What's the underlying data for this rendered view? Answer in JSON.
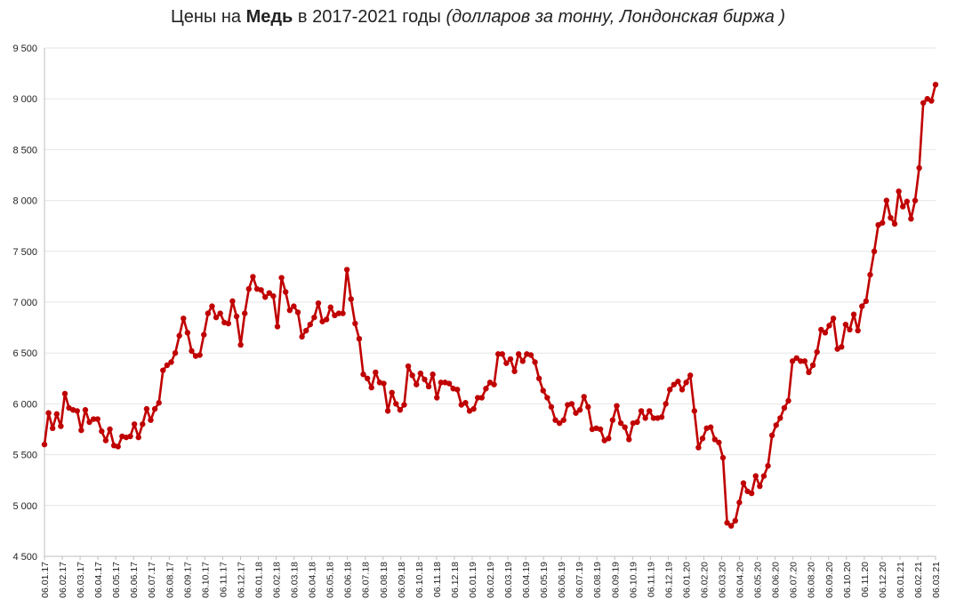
{
  "chart_data": {
    "type": "line",
    "title_parts": {
      "prefix": "Цены на ",
      "bold": "Медь",
      "middle": " в 2017-2021 годы ",
      "italic": "(долларов за тонну, Лондонская биржа )"
    },
    "ylim": [
      4500,
      9500
    ],
    "yticks": [
      4500,
      5000,
      5500,
      6000,
      6500,
      7000,
      7500,
      8000,
      8500,
      9000,
      9500
    ],
    "ytick_labels": [
      "4 500",
      "5 000",
      "5 500",
      "6 000",
      "6 500",
      "7 000",
      "7 500",
      "8 000",
      "8 500",
      "9 000",
      "9 500"
    ],
    "xtick_labels": [
      "06.01.17",
      "06.02.17",
      "06.03.17",
      "06.04.17",
      "06.05.17",
      "06.06.17",
      "06.07.17",
      "06.08.17",
      "06.09.17",
      "06.10.17",
      "06.11.17",
      "06.12.17",
      "06.01.18",
      "06.02.18",
      "06.03.18",
      "06.04.18",
      "06.05.18",
      "06.06.18",
      "06.07.18",
      "06.08.18",
      "06.09.18",
      "06.10.18",
      "06.11.18",
      "06.12.18",
      "06.01.19",
      "06.02.19",
      "06.03.19",
      "06.04.19",
      "06.05.19",
      "06.06.19",
      "06.07.19",
      "06.08.19",
      "06.09.19",
      "06.10.19",
      "06.11.19",
      "06.12.19",
      "06.01.20",
      "06.02.20",
      "06.03.20",
      "06.04.20",
      "06.05.20",
      "06.06.20",
      "06.07.20",
      "06.08.20",
      "06.09.20",
      "06.10.20",
      "06.11.20",
      "06.12.20",
      "06.01.21",
      "06.02.21",
      "06.03.21"
    ],
    "grid": true,
    "legend": "none",
    "series": [
      {
        "color": "#C00000",
        "values": [
          5600,
          5910,
          5760,
          5900,
          5780,
          6100,
          5960,
          5940,
          5930,
          5740,
          5940,
          5820,
          5850,
          5850,
          5730,
          5640,
          5750,
          5590,
          5580,
          5680,
          5670,
          5680,
          5800,
          5670,
          5800,
          5950,
          5840,
          5950,
          6010,
          6330,
          6380,
          6410,
          6500,
          6670,
          6840,
          6700,
          6520,
          6470,
          6480,
          6680,
          6890,
          6960,
          6850,
          6890,
          6800,
          6790,
          7010,
          6860,
          6580,
          6890,
          7130,
          7250,
          7130,
          7120,
          7050,
          7090,
          7060,
          6760,
          7240,
          7100,
          6920,
          6960,
          6900,
          6660,
          6720,
          6780,
          6850,
          6990,
          6810,
          6830,
          6950,
          6870,
          6890,
          6890,
          7320,
          7030,
          6790,
          6640,
          6290,
          6250,
          6160,
          6310,
          6210,
          6200,
          5930,
          6110,
          6000,
          5940,
          5990,
          6370,
          6280,
          6190,
          6300,
          6240,
          6170,
          6290,
          6060,
          6210,
          6210,
          6200,
          6150,
          6140,
          5990,
          6010,
          5930,
          5950,
          6060,
          6060,
          6150,
          6210,
          6190,
          6490,
          6490,
          6400,
          6440,
          6320,
          6490,
          6420,
          6490,
          6480,
          6410,
          6250,
          6130,
          6060,
          5970,
          5840,
          5810,
          5840,
          5990,
          6000,
          5910,
          5940,
          6070,
          5970,
          5750,
          5760,
          5750,
          5640,
          5660,
          5840,
          5980,
          5810,
          5770,
          5650,
          5810,
          5820,
          5930,
          5860,
          5930,
          5860,
          5860,
          5870,
          6000,
          6140,
          6190,
          6220,
          6140,
          6210,
          6280,
          5930,
          5570,
          5660,
          5760,
          5770,
          5650,
          5620,
          5470,
          4830,
          4800,
          4850,
          5030,
          5220,
          5140,
          5120,
          5290,
          5190,
          5290,
          5390,
          5690,
          5790,
          5860,
          5960,
          6030,
          6420,
          6450,
          6420,
          6420,
          6310,
          6380,
          6510,
          6730,
          6700,
          6770,
          6840,
          6540,
          6560,
          6780,
          6730,
          6880,
          6720,
          6960,
          7010,
          7270,
          7500,
          7760,
          7780,
          8000,
          7830,
          7770,
          8090,
          7940,
          7990,
          7820,
          8000,
          8320,
          8960,
          9000,
          8980,
          9140
        ]
      }
    ]
  }
}
